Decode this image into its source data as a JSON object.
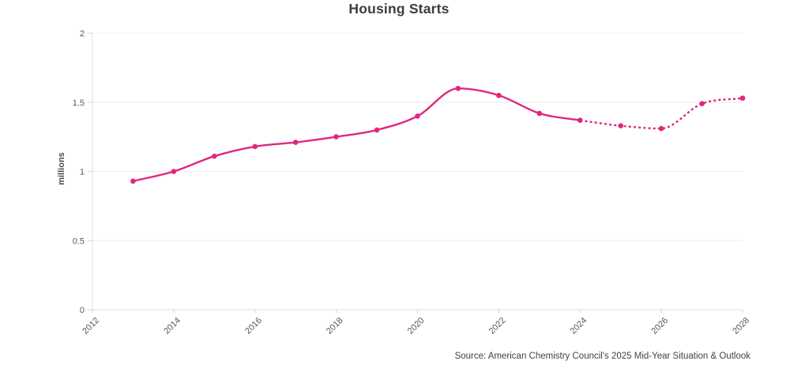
{
  "chart_data": {
    "type": "line",
    "title": "Housing Starts",
    "xlabel": "",
    "ylabel": "millions",
    "source": "Source: American Chemistry Council's 2025 Mid-Year Situation & Outlook",
    "x": [
      2013,
      2014,
      2015,
      2016,
      2017,
      2018,
      2019,
      2020,
      2021,
      2022,
      2023,
      2024,
      2025,
      2026,
      2027,
      2028
    ],
    "series": [
      {
        "name": "Housing Starts",
        "values": [
          0.93,
          1.0,
          1.11,
          1.18,
          1.21,
          1.25,
          1.3,
          1.4,
          1.6,
          1.55,
          1.42,
          1.37,
          1.33,
          1.31,
          1.49,
          1.53
        ]
      }
    ],
    "forecast_dashed_from_x": 2024,
    "xlim": [
      2012,
      2028
    ],
    "ylim": [
      0,
      2
    ],
    "xticks": [
      2012,
      2014,
      2016,
      2018,
      2020,
      2022,
      2024,
      2026,
      2028
    ],
    "yticks": [
      0,
      0.5,
      1,
      1.5,
      2
    ],
    "ytick_labels": [
      "0",
      "0.5",
      "1",
      "1.5",
      "2"
    ],
    "grid": "horizontal",
    "legend": "none",
    "line_color": "#e2267e",
    "marker": "circle",
    "axis_color": "#e0e0e0",
    "gridline_color": "#ededed",
    "tick_color": "#d2d2d2",
    "tick_label_color": "#58585a"
  }
}
